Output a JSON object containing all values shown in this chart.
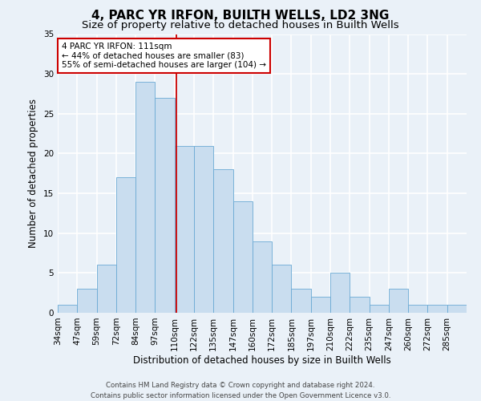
{
  "title": "4, PARC YR IRFON, BUILTH WELLS, LD2 3NG",
  "subtitle": "Size of property relative to detached houses in Builth Wells",
  "xlabel": "Distribution of detached houses by size in Builth Wells",
  "ylabel": "Number of detached properties",
  "bin_labels": [
    "34sqm",
    "47sqm",
    "59sqm",
    "72sqm",
    "84sqm",
    "97sqm",
    "110sqm",
    "122sqm",
    "135sqm",
    "147sqm",
    "160sqm",
    "172sqm",
    "185sqm",
    "197sqm",
    "210sqm",
    "222sqm",
    "235sqm",
    "247sqm",
    "260sqm",
    "272sqm",
    "285sqm"
  ],
  "bar_heights": [
    1,
    3,
    6,
    17,
    29,
    27,
    21,
    21,
    18,
    14,
    9,
    6,
    3,
    2,
    5,
    2,
    1,
    3,
    1,
    1,
    1
  ],
  "bar_color": "#c9ddef",
  "bar_edge_color": "#6aaad4",
  "ylim": [
    0,
    35
  ],
  "yticks": [
    0,
    5,
    10,
    15,
    20,
    25,
    30,
    35
  ],
  "vline_color": "#cc0000",
  "vline_x": 6.083,
  "annotation_text": "4 PARC YR IRFON: 111sqm\n← 44% of detached houses are smaller (83)\n55% of semi-detached houses are larger (104) →",
  "annotation_box_color": "#ffffff",
  "annotation_box_edge": "#cc0000",
  "footer_text": "Contains HM Land Registry data © Crown copyright and database right 2024.\nContains public sector information licensed under the Open Government Licence v3.0.",
  "bg_color": "#eaf1f8",
  "grid_color": "#ffffff",
  "title_fontsize": 11,
  "subtitle_fontsize": 9.5,
  "tick_fontsize": 7.5,
  "ylabel_fontsize": 8.5,
  "xlabel_fontsize": 8.5,
  "annotation_fontsize": 7.5,
  "footer_fontsize": 6.2
}
